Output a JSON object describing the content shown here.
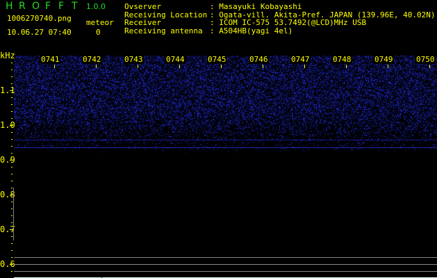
{
  "app": {
    "title_letters": [
      "H",
      "R",
      "O",
      "F",
      "F",
      "T"
    ],
    "version": "1.0.0"
  },
  "file": {
    "name": "1006270740.png",
    "datetime": "10.06.27 07:40"
  },
  "meteor": {
    "label": "meteor",
    "count": "0"
  },
  "info": [
    {
      "key": "Ovserver",
      "value": ": Masayuki Kobayashi"
    },
    {
      "key": "Receiving Location",
      "value": ": Ogata-vill. Akita-Pref. JAPAN (139.96E, 40.02N)"
    },
    {
      "key": "Receiver",
      "value": ": ICOM IC-575 53.7492(@LCD)MHz USB"
    },
    {
      "key": "Receiving antenna",
      "value": ": A504HB(yagi 4el)"
    }
  ],
  "axis": {
    "unit": "kHz",
    "freq_labels": [
      "1.1",
      "1.0",
      "0.9",
      "0.8",
      "0.7",
      "0.6"
    ],
    "time_labels": [
      "0741",
      "0742",
      "0743",
      "0744",
      "0745",
      "0746",
      "0747",
      "0748",
      "0749",
      "0750"
    ]
  },
  "colors": {
    "text": "#ffff00",
    "title": "#22dd22",
    "signal": "#2030ff"
  }
}
